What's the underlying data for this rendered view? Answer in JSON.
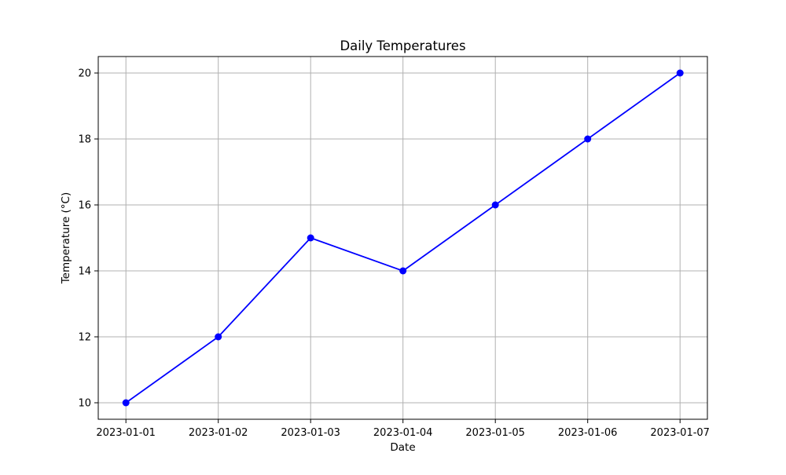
{
  "chart_data": {
    "type": "line",
    "title": "Daily Temperatures",
    "xlabel": "Date",
    "ylabel": "Temperature (°C)",
    "x": [
      "2023-01-01",
      "2023-01-02",
      "2023-01-03",
      "2023-01-04",
      "2023-01-05",
      "2023-01-06",
      "2023-01-07"
    ],
    "series": [
      {
        "values": [
          10,
          12,
          15,
          14,
          16,
          18,
          20
        ],
        "color": "#0000ff",
        "marker": "circle"
      }
    ],
    "y_ticks": [
      10,
      12,
      14,
      16,
      18,
      20
    ],
    "ylim": [
      9.5,
      20.5
    ],
    "grid": true,
    "grid_color": "#b0b0b0",
    "legend": "none"
  }
}
